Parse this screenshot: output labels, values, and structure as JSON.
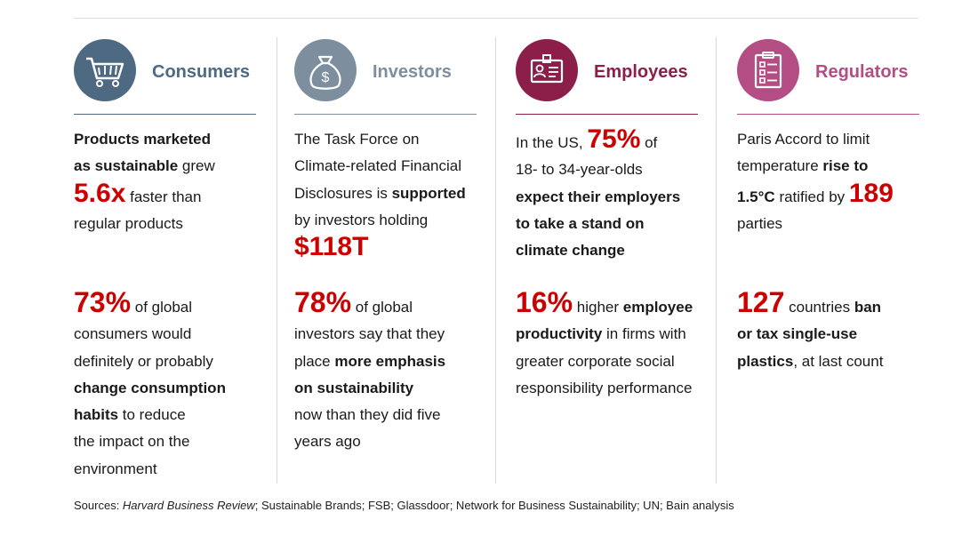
{
  "columns": [
    {
      "key": "consumers",
      "title": "Consumers",
      "color": "#4e6a82",
      "icon": "shopping-cart-icon",
      "stat1": {
        "line1": "Products marketed",
        "line2_bold": "as sustainable",
        "line2_rest": " grew",
        "big": "5.6x",
        "line3_rest": " faster than",
        "line4": "regular products"
      },
      "stat2": {
        "big": "73%",
        "l1_rest": " of global",
        "l2": "consumers would",
        "l3": "definitely or probably",
        "l4_bold": "change consumption",
        "l5_bold": "habits",
        "l5_rest": " to reduce",
        "l6": "the impact on the",
        "l7": "environment"
      }
    },
    {
      "key": "investors",
      "title": "Investors",
      "color": "#7d8e9e",
      "icon": "money-bag-icon",
      "stat1": {
        "l1": "The Task Force on",
        "l2": "Climate-related Financial",
        "l3_pre": "Disclosures is ",
        "l3_bold": "supported",
        "l4": "by investors holding",
        "big": "$118T"
      },
      "stat2": {
        "big": "78%",
        "l1_rest": " of global",
        "l2": "investors say that they",
        "l3_pre": "place ",
        "l3_bold": "more emphasis",
        "l4_bold": "on sustainability",
        "l5": "now than they did five",
        "l6": "years ago"
      }
    },
    {
      "key": "employees",
      "title": "Employees",
      "color": "#8c1f4a",
      "icon": "id-badge-icon",
      "stat1": {
        "l1_pre": "In the US, ",
        "big": "75%",
        "l1_rest": " of",
        "l2": "18- to 34-year-olds",
        "l3_bold": "expect their employers",
        "l4_bold": "to take a stand on",
        "l5_bold": "climate change"
      },
      "stat2": {
        "big": "16%",
        "l1_pre": " higher ",
        "l1_bold": "employee",
        "l2_bold": "productivity",
        "l2_rest": " in firms with",
        "l3": "greater corporate social",
        "l4": "responsibility performance"
      }
    },
    {
      "key": "regulators",
      "title": "Regulators",
      "color": "#b44d83",
      "icon": "clipboard-checklist-icon",
      "stat1": {
        "l1": "Paris Accord to limit",
        "l2_pre": "temperature ",
        "l2_bold": "rise to",
        "l3_bold": "1.5°C",
        "l3_rest": " ratified by ",
        "big": "189",
        "l4": "parties"
      },
      "stat2": {
        "big": "127",
        "l1_pre": " countries ",
        "l1_bold": "ban",
        "l2_bold": "or tax single-use",
        "l3_bold": "plastics",
        "l3_rest": ", at last count"
      }
    }
  ],
  "sources": {
    "prefix": "Sources: ",
    "italic": "Harvard Business Review",
    "rest": "; Sustainable Brands; FSB; Glassdoor; Network for Business Sustainability; UN; Bain analysis"
  }
}
